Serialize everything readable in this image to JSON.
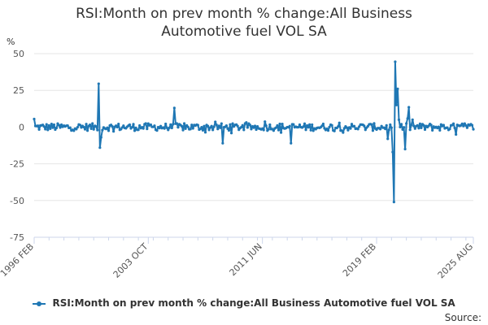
{
  "title_line1": "RSI:Month on prev month % change:All Business",
  "title_line2": "Automotive fuel VOL SA",
  "source_label": "Source:",
  "colors": {
    "series": "#1f77b4",
    "grid": "#e6e6e6",
    "axis": "#ccd6eb"
  },
  "chart_data": {
    "type": "line",
    "title": "RSI:Month on prev month % change:All Business Automotive fuel VOL SA",
    "ylabel": "%",
    "ylim": [
      -75,
      50
    ],
    "yticks": [
      50,
      25,
      0,
      -25,
      -50,
      -75
    ],
    "xticks": [
      "1996 FEB",
      "2003 OCT",
      "2011 JUN",
      "2019 FEB",
      "2025 AUG"
    ],
    "grid": "horizontal",
    "legend_position": "bottom",
    "series": [
      {
        "name": "RSI:Month on prev month % change:All Business Automotive fuel VOL SA",
        "x_range": [
          "1996 FEB",
          "2025 AUG"
        ],
        "baseline_noise": 2.5,
        "key_points": [
          {
            "date": "1996 FEB",
            "value": 5.5
          },
          {
            "date": "2000 JUN",
            "value": 29.5
          },
          {
            "date": "2000 JUL",
            "value": -14
          },
          {
            "date": "2000 AUG",
            "value": -7
          },
          {
            "date": "2005 JUL",
            "value": 13
          },
          {
            "date": "2008 OCT",
            "value": -11
          },
          {
            "date": "2013 MAY",
            "value": -11
          },
          {
            "date": "2019 NOV",
            "value": -8
          },
          {
            "date": "2020 MAR",
            "value": -17
          },
          {
            "date": "2020 APR",
            "value": -51
          },
          {
            "date": "2020 MAY",
            "value": 44.5
          },
          {
            "date": "2020 JUN",
            "value": 15
          },
          {
            "date": "2020 JUL",
            "value": 26
          },
          {
            "date": "2020 AUG",
            "value": 5
          },
          {
            "date": "2021 JAN",
            "value": -15
          },
          {
            "date": "2021 APR",
            "value": 13.5
          },
          {
            "date": "2021 JUL",
            "value": 5
          },
          {
            "date": "2025 AUG",
            "value": -1.5
          }
        ]
      }
    ]
  }
}
